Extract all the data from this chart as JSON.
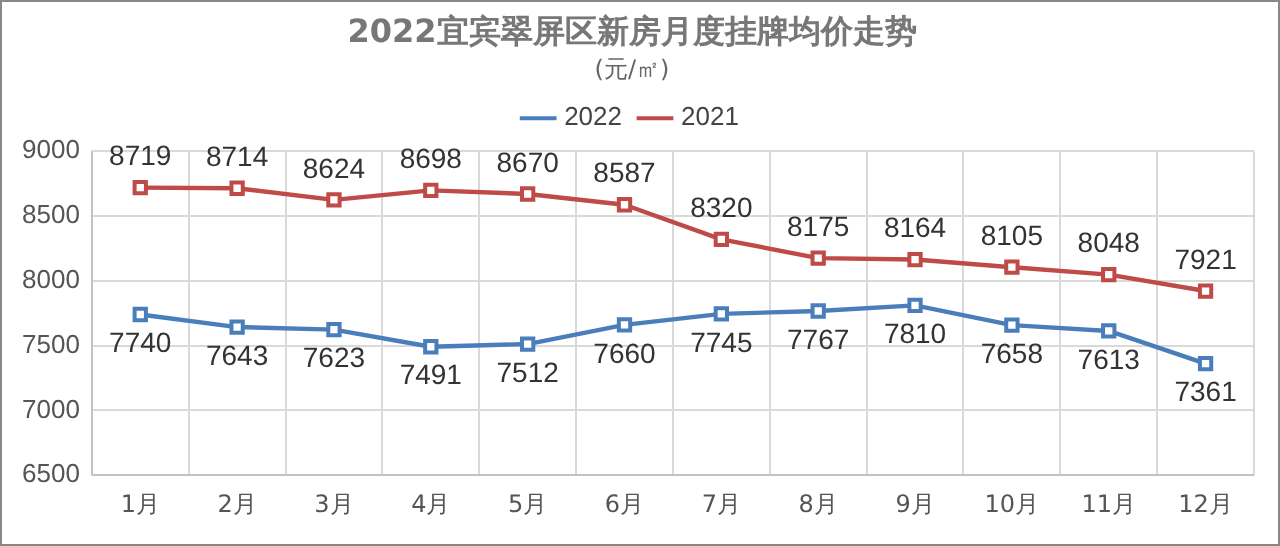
{
  "chart_data": {
    "type": "line",
    "title": "2022宜宾翠屏区新房月度挂牌均价走势",
    "subtitle": "(元/㎡)",
    "categories": [
      "1月",
      "2月",
      "3月",
      "4月",
      "5月",
      "6月",
      "7月",
      "8月",
      "9月",
      "10月",
      "11月",
      "12月"
    ],
    "series": [
      {
        "name": "2022",
        "color": "#4a7ebb",
        "values": [
          7740,
          7643,
          7623,
          7491,
          7512,
          7660,
          7745,
          7767,
          7810,
          7658,
          7613,
          7361
        ]
      },
      {
        "name": "2021",
        "color": "#be4b48",
        "values": [
          8719,
          8714,
          8624,
          8698,
          8670,
          8587,
          8320,
          8175,
          8164,
          8105,
          8048,
          7921
        ]
      }
    ],
    "ylim": [
      6500,
      9000
    ],
    "yticks": [
      6500,
      7000,
      7500,
      8000,
      8500,
      9000
    ],
    "grid": true,
    "legend": "top",
    "marker": "square",
    "line_style": "solid",
    "data_labels": true
  }
}
